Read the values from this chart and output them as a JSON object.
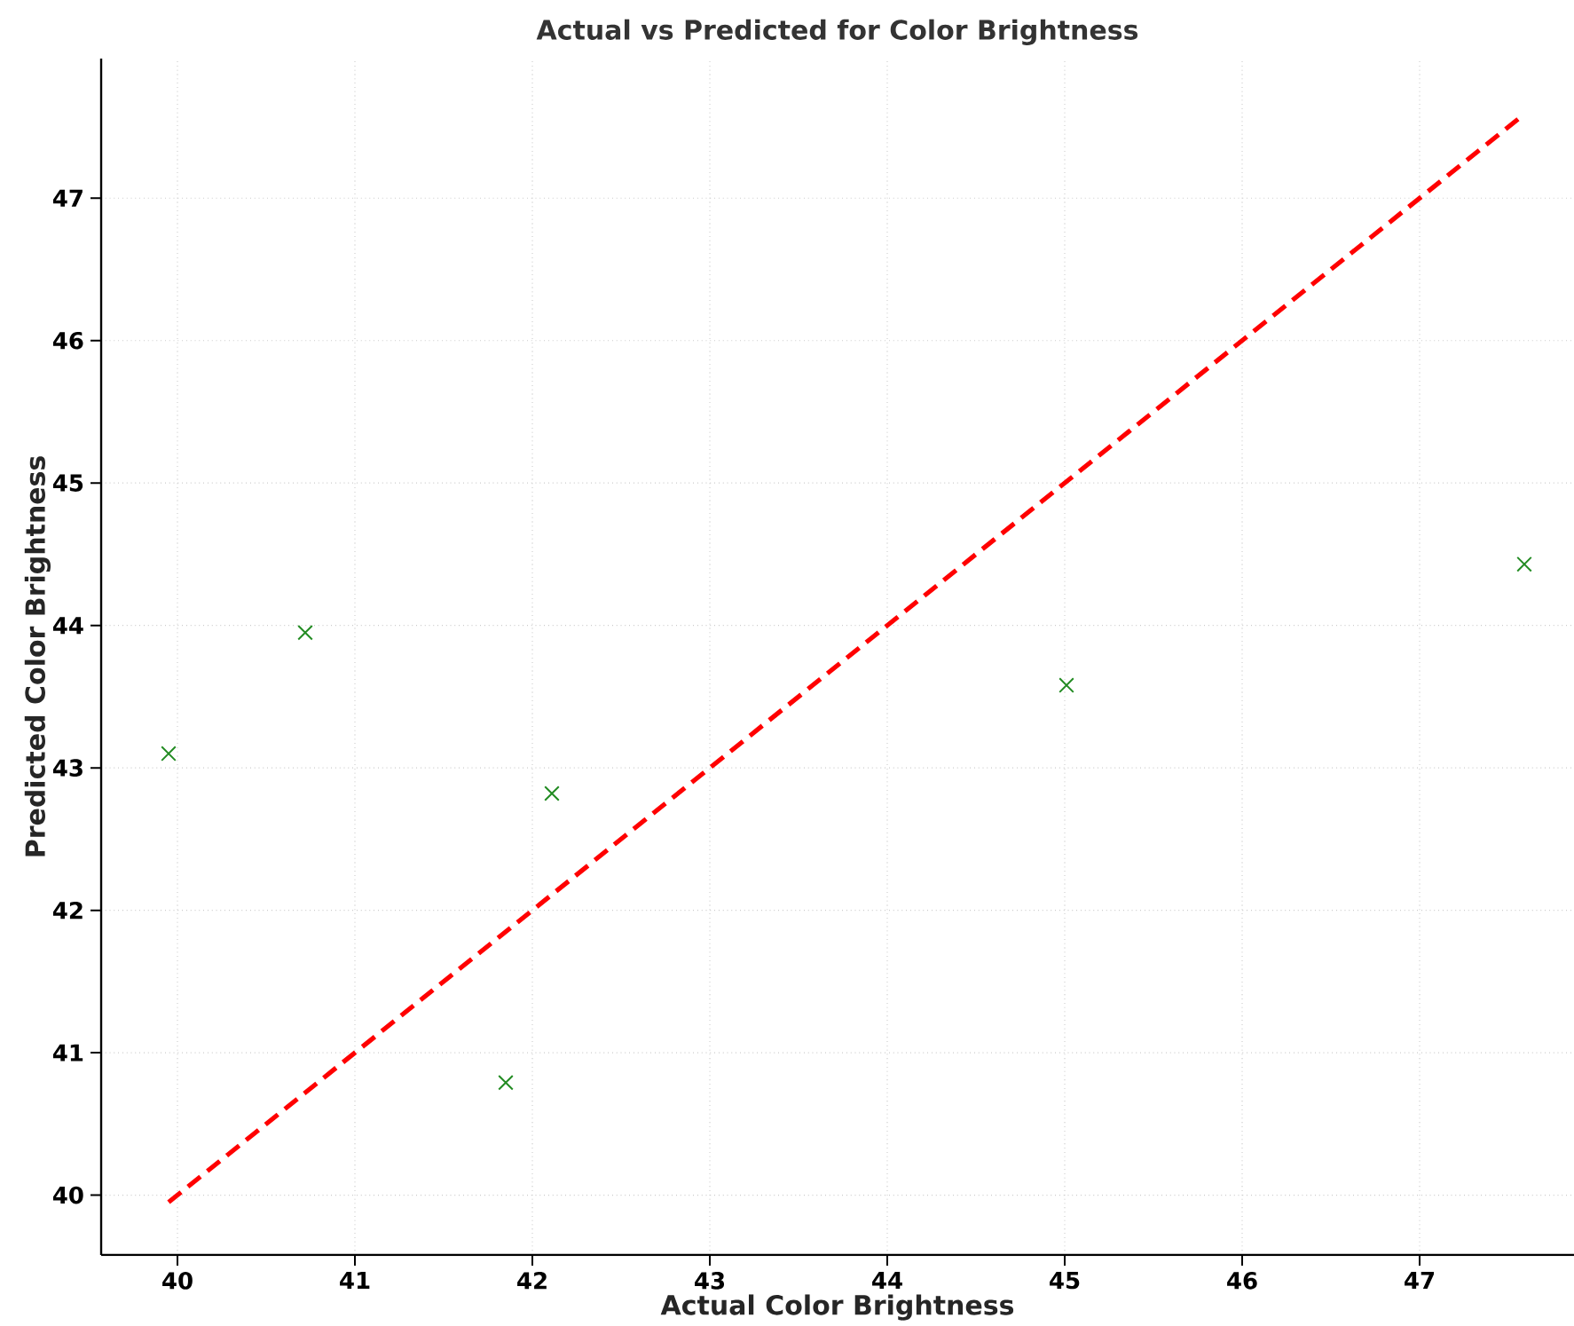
{
  "chart_data": {
    "type": "scatter",
    "title": "Actual vs Predicted for Color Brightness",
    "xlabel": "Actual Color Brightness",
    "ylabel": "Predicted Color Brightness",
    "xlim": [
      39.57,
      47.87
    ],
    "ylim": [
      39.58,
      47.98
    ],
    "xticks": [
      40,
      41,
      42,
      43,
      44,
      45,
      46,
      47
    ],
    "yticks": [
      40,
      41,
      42,
      43,
      44,
      45,
      46,
      47
    ],
    "grid": true,
    "series": [
      {
        "color": "#228b22",
        "marker": "cross",
        "x": [
          39.95,
          40.72,
          42.11,
          41.85,
          45.01,
          47.59
        ],
        "values": [
          43.1,
          43.95,
          42.82,
          40.79,
          43.58,
          44.43
        ]
      },
      {
        "type": "line",
        "color": "#ff0000",
        "line_style": "dashed",
        "marker": "none",
        "x": [
          39.95,
          47.59
        ],
        "values": [
          39.95,
          47.59
        ]
      }
    ]
  }
}
